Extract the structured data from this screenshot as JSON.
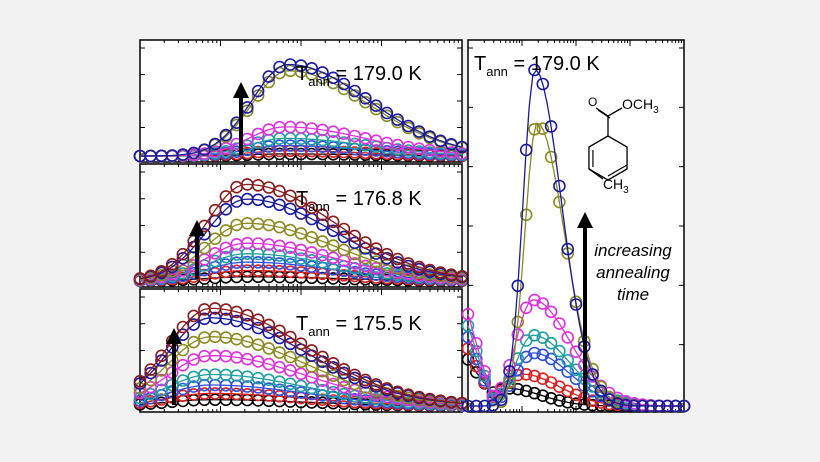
{
  "chart_data": [
    {
      "type": "scatter",
      "panel": "left-top",
      "annotation": {
        "prefix": "T",
        "subscript": "ann",
        "value": " = 179.0 K"
      },
      "x_scale": "log",
      "arrow": "upward",
      "series": [
        {
          "color": "#000000",
          "peak_x": 0.45,
          "peak_y": 0.02,
          "width": 0.55
        },
        {
          "color": "#e02020",
          "peak_x": 0.45,
          "peak_y": 0.05,
          "width": 0.55
        },
        {
          "color": "#3050e0",
          "peak_x": 0.45,
          "peak_y": 0.1,
          "width": 0.55
        },
        {
          "color": "#20a0a0",
          "peak_x": 0.45,
          "peak_y": 0.17,
          "width": 0.55
        },
        {
          "color": "#e030e0",
          "peak_x": 0.45,
          "peak_y": 0.28,
          "width": 0.55
        },
        {
          "color": "#8a8a20",
          "peak_x": 0.46,
          "peak_y": 0.82,
          "width": 0.55
        },
        {
          "color": "#1a1aa0",
          "peak_x": 0.46,
          "peak_y": 0.88,
          "width": 0.55
        }
      ]
    },
    {
      "type": "scatter",
      "panel": "left-middle",
      "annotation": {
        "prefix": "T",
        "subscript": "ann",
        "value": " = 176.8 K"
      },
      "x_scale": "log",
      "arrow": "upward",
      "series": [
        {
          "color": "#000000",
          "peak_x": 0.33,
          "peak_y": 0.04,
          "width": 0.6
        },
        {
          "color": "#e02020",
          "peak_x": 0.33,
          "peak_y": 0.1,
          "width": 0.6
        },
        {
          "color": "#3050e0",
          "peak_x": 0.33,
          "peak_y": 0.18,
          "width": 0.6
        },
        {
          "color": "#20a0a0",
          "peak_x": 0.33,
          "peak_y": 0.26,
          "width": 0.6
        },
        {
          "color": "#e030e0",
          "peak_x": 0.33,
          "peak_y": 0.36,
          "width": 0.6
        },
        {
          "color": "#8a8a20",
          "peak_x": 0.33,
          "peak_y": 0.55,
          "width": 0.6
        },
        {
          "color": "#1a1aa0",
          "peak_x": 0.33,
          "peak_y": 0.78,
          "width": 0.6
        },
        {
          "color": "#8b1a1a",
          "peak_x": 0.33,
          "peak_y": 0.92,
          "width": 0.6
        }
      ]
    },
    {
      "type": "scatter",
      "panel": "left-bottom",
      "annotation": {
        "prefix": "T",
        "subscript": "ann",
        "value": " = 175.5 K"
      },
      "x_scale": "log",
      "arrow": "upward",
      "series": [
        {
          "color": "#000000",
          "peak_x": 0.22,
          "peak_y": 0.06,
          "width": 0.65
        },
        {
          "color": "#e02020",
          "peak_x": 0.22,
          "peak_y": 0.12,
          "width": 0.65
        },
        {
          "color": "#3050e0",
          "peak_x": 0.22,
          "peak_y": 0.2,
          "width": 0.65
        },
        {
          "color": "#20a0a0",
          "peak_x": 0.22,
          "peak_y": 0.3,
          "width": 0.65
        },
        {
          "color": "#e030e0",
          "peak_x": 0.22,
          "peak_y": 0.48,
          "width": 0.65
        },
        {
          "color": "#8a8a20",
          "peak_x": 0.22,
          "peak_y": 0.66,
          "width": 0.65
        },
        {
          "color": "#1a1aa0",
          "peak_x": 0.22,
          "peak_y": 0.84,
          "width": 0.65
        },
        {
          "color": "#8b1a1a",
          "peak_x": 0.22,
          "peak_y": 0.93,
          "width": 0.65
        }
      ]
    },
    {
      "type": "scatter",
      "panel": "right",
      "annotation": {
        "prefix": "T",
        "subscript": "ann",
        "value": " = 179.0 K"
      },
      "x_scale": "log",
      "arrow": "upward",
      "arrow_label": [
        "increasing",
        "annealing",
        "time"
      ],
      "molecule_labels": {
        "ester": "OCH",
        "ester_sub": "3",
        "methyl": "CH",
        "methyl_sub": "3"
      },
      "series": [
        {
          "color": "#000000",
          "peak_x": 0.18,
          "peak_y": 0.05,
          "width": 0.35
        },
        {
          "color": "#e02020",
          "peak_x": 0.25,
          "peak_y": 0.09,
          "width": 0.38
        },
        {
          "color": "#3050e0",
          "peak_x": 0.3,
          "peak_y": 0.15,
          "width": 0.38
        },
        {
          "color": "#20a0a0",
          "peak_x": 0.3,
          "peak_y": 0.2,
          "width": 0.38
        },
        {
          "color": "#e030e0",
          "peak_x": 0.3,
          "peak_y": 0.3,
          "width": 0.38
        },
        {
          "color": "#8a8a20",
          "peak_x": 0.32,
          "peak_y": 0.8,
          "width": 0.28
        },
        {
          "color": "#1a1aa0",
          "peak_x": 0.31,
          "peak_y": 0.95,
          "width": 0.27
        }
      ]
    }
  ]
}
